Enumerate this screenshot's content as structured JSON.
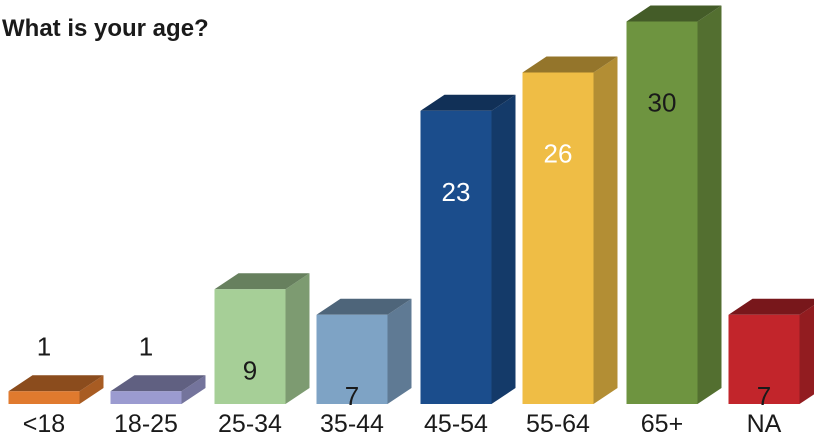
{
  "chart_data": {
    "type": "bar",
    "title": "What is your age?",
    "categories": [
      "<18",
      "18-25",
      "25-34",
      "35-44",
      "45-54",
      "55-64",
      "65+",
      "NA"
    ],
    "values": [
      1,
      1,
      9,
      7,
      23,
      26,
      30,
      7
    ],
    "colors": [
      "#e07a2e",
      "#9b9bd0",
      "#a6cf97",
      "#7ea3c5",
      "#1b4d8c",
      "#efbd45",
      "#6e9440",
      "#c2252b"
    ],
    "label_colors": [
      "#1a1a1a",
      "#1a1a1a",
      "#1a1a1a",
      "#1a1a1a",
      "#ffffff",
      "#ffffff",
      "#1a1a1a",
      "#1a1a1a"
    ],
    "style": "3d-bar",
    "grid": false,
    "legend": "none"
  }
}
